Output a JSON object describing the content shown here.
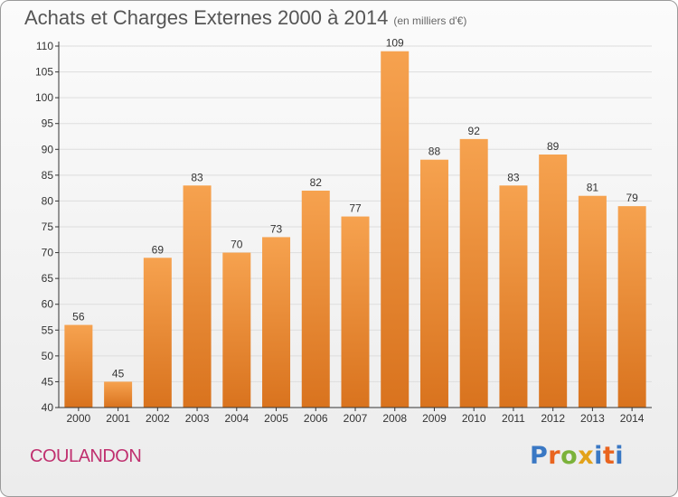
{
  "header": {
    "title": "Achats et Charges Externes 2000 à 2014",
    "unit_note": "(en milliers d'€)"
  },
  "footer": {
    "commune": "COULANDON",
    "brand": "Proxiti"
  },
  "colors": {
    "bar_top": "#f6a24f",
    "bar_bottom": "#d9731e",
    "grid": "#dddddd",
    "axis": "#333333",
    "commune_text": "#c0306f",
    "brand_letters": [
      "#3a78c4",
      "#e9641f",
      "#7bb23a",
      "#e3a21a",
      "#3a78c4",
      "#e9641f",
      "#3a78c4"
    ]
  },
  "chart_data": {
    "type": "bar",
    "title": "Achats et Charges Externes 2000 à 2014",
    "subtitle": "(en milliers d'€)",
    "xlabel": "",
    "ylabel": "",
    "categories": [
      "2000",
      "2001",
      "2002",
      "2003",
      "2004",
      "2005",
      "2006",
      "2007",
      "2008",
      "2009",
      "2010",
      "2011",
      "2012",
      "2013",
      "2014"
    ],
    "values": [
      56,
      45,
      69,
      83,
      70,
      73,
      82,
      77,
      109,
      88,
      92,
      83,
      89,
      81,
      79
    ],
    "ylim": [
      40,
      110
    ],
    "yticks": [
      40,
      45,
      50,
      55,
      60,
      65,
      70,
      75,
      80,
      85,
      90,
      95,
      100,
      105,
      110
    ],
    "grid": "horizontal",
    "data_labels": true
  }
}
